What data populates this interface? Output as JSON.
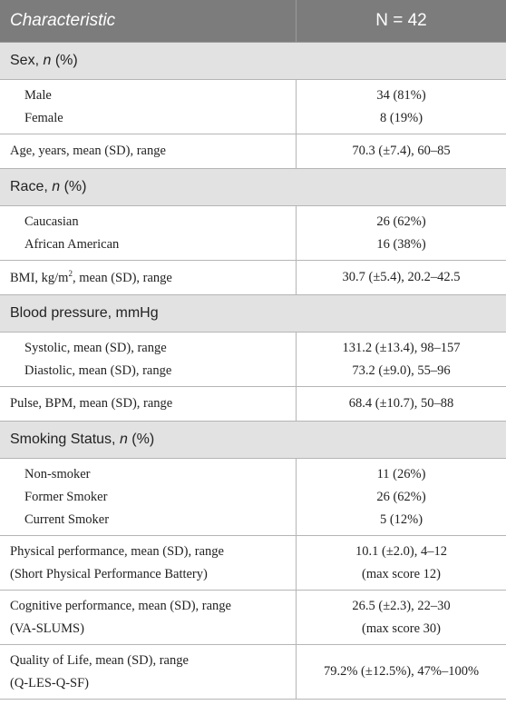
{
  "table": {
    "header": [
      "Characteristic",
      "N = 42"
    ],
    "rows": [
      {
        "section": [
          {
            "text": "Sex, "
          },
          {
            "text": "n",
            "italic": true
          },
          {
            "text": " (%)"
          }
        ]
      },
      {
        "items": [
          {
            "label": "Male",
            "value": "34 (81%)"
          },
          {
            "label": "Female",
            "value": "8 (19%)"
          }
        ]
      },
      {
        "label": [
          {
            "text": "Age, years, mean (SD), range"
          }
        ],
        "value": "70.3 (±7.4), 60–85"
      },
      {
        "section": [
          {
            "text": "Race, "
          },
          {
            "text": "n",
            "italic": true
          },
          {
            "text": " (%)"
          }
        ]
      },
      {
        "items": [
          {
            "label": "Caucasian",
            "value": "26 (62%)"
          },
          {
            "label": "African American",
            "value": "16 (38%)"
          }
        ]
      },
      {
        "label": [
          {
            "text": "BMI, kg/m"
          },
          {
            "text": "2",
            "sup": true
          },
          {
            "text": ", mean (SD), range"
          }
        ],
        "value": "30.7 (±5.4), 20.2–42.5"
      },
      {
        "section": [
          {
            "text": "Blood pressure, mmHg"
          }
        ]
      },
      {
        "items": [
          {
            "label": "Systolic, mean (SD), range",
            "value": "131.2 (±13.4), 98–157"
          },
          {
            "label": "Diastolic, mean (SD), range",
            "value": "73.2 (±9.0), 55–96"
          }
        ]
      },
      {
        "label": [
          {
            "text": "Pulse, BPM, mean (SD), range"
          }
        ],
        "value": "68.4 (±10.7), 50–88"
      },
      {
        "section": [
          {
            "text": "Smoking Status, "
          },
          {
            "text": "n",
            "italic": true
          },
          {
            "text": " (%)"
          }
        ]
      },
      {
        "items": [
          {
            "label": "Non-smoker",
            "value": "11 (26%)"
          },
          {
            "label": "Former Smoker",
            "value": "26 (62%)"
          },
          {
            "label": "Current Smoker",
            "value": "5 (12%)"
          }
        ]
      },
      {
        "label_lines": [
          "Physical performance, mean (SD), range",
          "(Short Physical Performance Battery)"
        ],
        "value_lines": [
          "10.1 (±2.0), 4–12",
          "(max score 12)"
        ]
      },
      {
        "label_lines": [
          "Cognitive performance, mean (SD), range",
          "(VA-SLUMS)"
        ],
        "value_lines": [
          "26.5 (±2.3), 22–30",
          "(max score 30)"
        ]
      },
      {
        "label_lines": [
          "Quality of Life, mean (SD), range",
          "(Q-LES-Q-SF)"
        ],
        "value_lines": [
          "79.2% (±12.5%), 47%–100%"
        ]
      }
    ]
  }
}
